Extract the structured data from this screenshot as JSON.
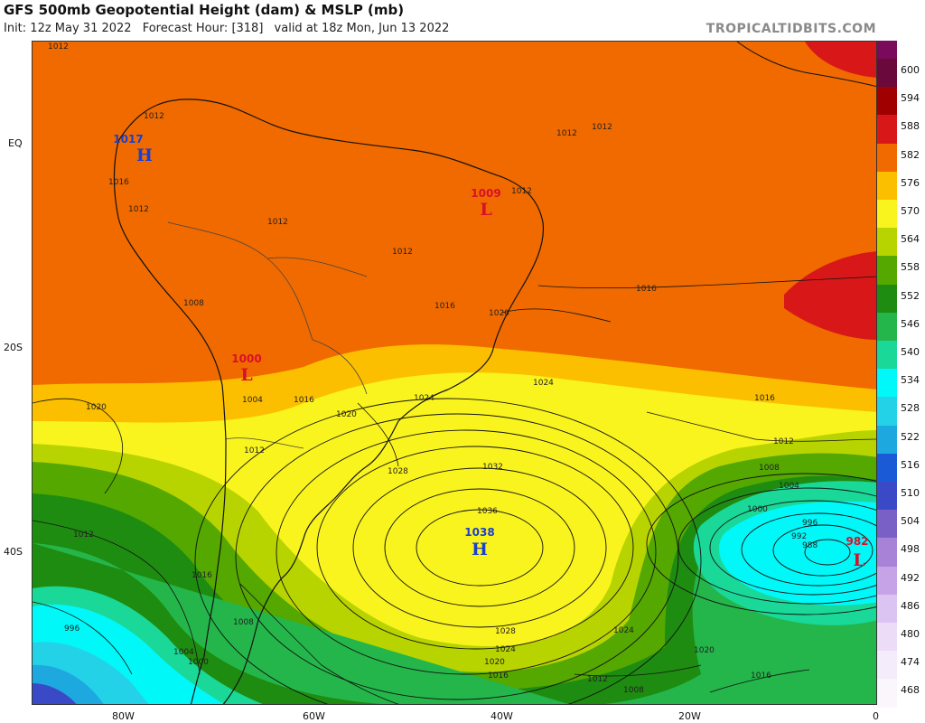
{
  "header": {
    "title": "GFS 500mb Geopotential Height (dam) & MSLP (mb)",
    "init": "Init: 12z May 31 2022",
    "forecast_hour": "Forecast Hour: [318]",
    "valid": "valid at 18z Mon, Jun 13 2022",
    "brand": "TROPICALTIDBITS.COM"
  },
  "axes": {
    "lat_labels": [
      "EQ",
      "20S",
      "40S"
    ],
    "lon_labels": [
      "80W",
      "60W",
      "40W",
      "20W",
      "0"
    ]
  },
  "colorbar": {
    "ticks": [
      "600",
      "594",
      "588",
      "582",
      "576",
      "570",
      "564",
      "558",
      "552",
      "546",
      "540",
      "534",
      "528",
      "522",
      "516",
      "510",
      "504",
      "498",
      "492",
      "486",
      "480",
      "474",
      "468"
    ],
    "colors": [
      "#6a0a3c",
      "#a00000",
      "#d81818",
      "#f06a00",
      "#fcbf00",
      "#faf41e",
      "#b8d400",
      "#54a800",
      "#1e8c10",
      "#24b64a",
      "#1ad898",
      "#00f8f8",
      "#24d2e8",
      "#1ea8e0",
      "#1a5ad6",
      "#3a4ac6",
      "#7860c6",
      "#a882d6",
      "#c6a2e6",
      "#dcc4f2",
      "#ecdcf8",
      "#f4ecfa",
      "#faf6fc"
    ]
  },
  "pressure_systems": [
    {
      "value": "1017",
      "letter": "H",
      "type": "high"
    },
    {
      "value": "1009",
      "letter": "L",
      "type": "low"
    },
    {
      "value": "1000",
      "letter": "L",
      "type": "low"
    },
    {
      "value": "1038",
      "letter": "H",
      "type": "high"
    },
    {
      "value": "982",
      "letter": "L",
      "type": "low"
    }
  ],
  "isobar_labels": [
    "1012",
    "1012",
    "1012",
    "1016",
    "1012",
    "1012",
    "1012",
    "1012",
    "1012",
    "1008",
    "1016",
    "1020",
    "1016",
    "1004",
    "1016",
    "1020",
    "1024",
    "1024",
    "1016",
    "1020",
    "1012",
    "1028",
    "1032",
    "1036",
    "1012",
    "1008",
    "1004",
    "1000",
    "996",
    "992",
    "988",
    "1012",
    "1016",
    "1008",
    "1004",
    "1000",
    "996",
    "1028",
    "1024",
    "1024",
    "1020",
    "1020",
    "1016",
    "1012",
    "1016",
    "1008"
  ],
  "colors": {
    "high_label": "#1a3fd0",
    "low_label": "#d8102a"
  }
}
